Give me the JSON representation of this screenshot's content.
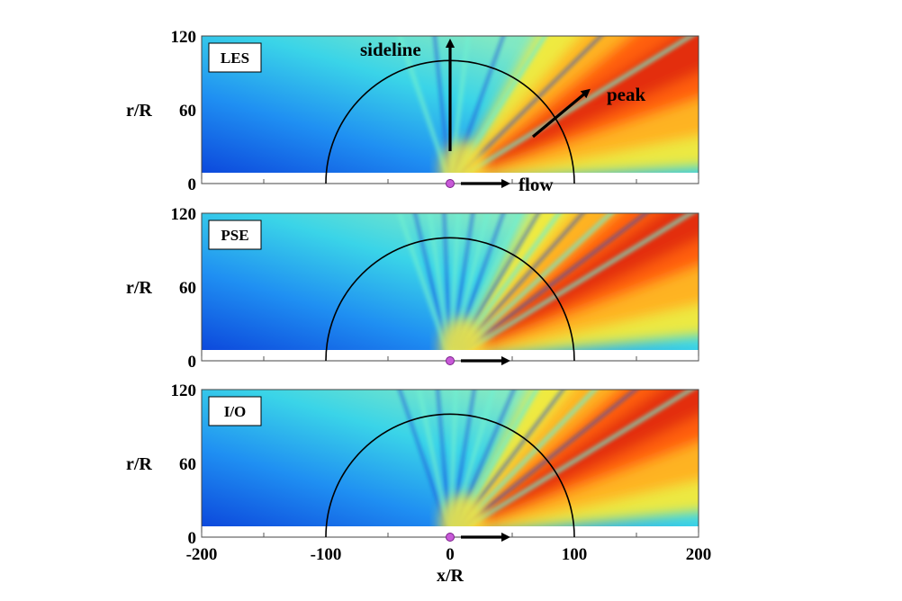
{
  "chart_data": {
    "type": "heatmap",
    "colormap": "jet",
    "x_label": "x/R",
    "y_label": "r/R",
    "xlim": [
      -200,
      200
    ],
    "ylim": [
      0,
      120
    ],
    "x_ticks": [
      "-200",
      "-100",
      "0",
      "100",
      "200"
    ],
    "y_ticks": [
      "0",
      "60",
      "120"
    ],
    "arc_radius": 100,
    "source_point": [
      0,
      0
    ],
    "panels": [
      {
        "label": "LES",
        "peak_angle_deg": 28,
        "beam_count": 7,
        "annotations": {
          "sideline": "sideline",
          "peak": "peak",
          "flow": "flow"
        }
      },
      {
        "label": "PSE",
        "peak_angle_deg": 30,
        "beam_count": 15
      },
      {
        "label": "I/O",
        "peak_angle_deg": 30,
        "beam_count": 12
      }
    ]
  }
}
